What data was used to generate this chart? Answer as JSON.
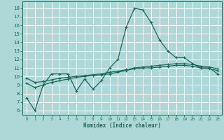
{
  "xlabel": "Humidex (Indice chaleur)",
  "bg_color": "#aed8d8",
  "grid_color": "#ffffff",
  "line_color": "#1a6b5a",
  "xlim": [
    -0.5,
    23.5
  ],
  "ylim": [
    5.5,
    18.8
  ],
  "xticks": [
    0,
    1,
    2,
    3,
    4,
    5,
    6,
    7,
    8,
    9,
    10,
    11,
    12,
    13,
    14,
    15,
    16,
    17,
    18,
    19,
    20,
    21,
    22,
    23
  ],
  "yticks": [
    6,
    7,
    8,
    9,
    10,
    11,
    12,
    13,
    14,
    15,
    16,
    17,
    18
  ],
  "series1": {
    "x": [
      0,
      1,
      2,
      3,
      4,
      5,
      6,
      7,
      8,
      9,
      10,
      11,
      12,
      13,
      14,
      15,
      16,
      17,
      18,
      19,
      20,
      21,
      22,
      23
    ],
    "y": [
      7.5,
      6.0,
      9.0,
      10.3,
      10.3,
      10.3,
      8.3,
      9.7,
      8.5,
      9.5,
      11.0,
      12.0,
      15.8,
      18.0,
      17.8,
      16.3,
      14.3,
      13.0,
      12.2,
      12.2,
      11.5,
      11.0,
      11.0,
      10.3
    ]
  },
  "series2": {
    "x": [
      0,
      1,
      2,
      3,
      4,
      5,
      6,
      7,
      8,
      9,
      10,
      11,
      12,
      13,
      14,
      15,
      16,
      17,
      18,
      19,
      20,
      21,
      22,
      23
    ],
    "y": [
      9.8,
      9.3,
      9.4,
      9.6,
      9.8,
      9.9,
      10.0,
      10.1,
      10.2,
      10.3,
      10.5,
      10.6,
      10.8,
      11.0,
      11.1,
      11.2,
      11.3,
      11.4,
      11.5,
      11.5,
      11.4,
      11.2,
      11.1,
      10.9
    ]
  },
  "series3": {
    "x": [
      0,
      1,
      2,
      3,
      4,
      5,
      6,
      7,
      8,
      9,
      10,
      11,
      12,
      13,
      14,
      15,
      16,
      17,
      18,
      19,
      20,
      21,
      22,
      23
    ],
    "y": [
      9.2,
      8.7,
      9.0,
      9.3,
      9.5,
      9.7,
      9.9,
      10.0,
      10.1,
      10.2,
      10.3,
      10.5,
      10.7,
      10.9,
      11.0,
      11.0,
      11.1,
      11.2,
      11.3,
      11.3,
      11.2,
      11.0,
      10.9,
      10.7
    ]
  }
}
